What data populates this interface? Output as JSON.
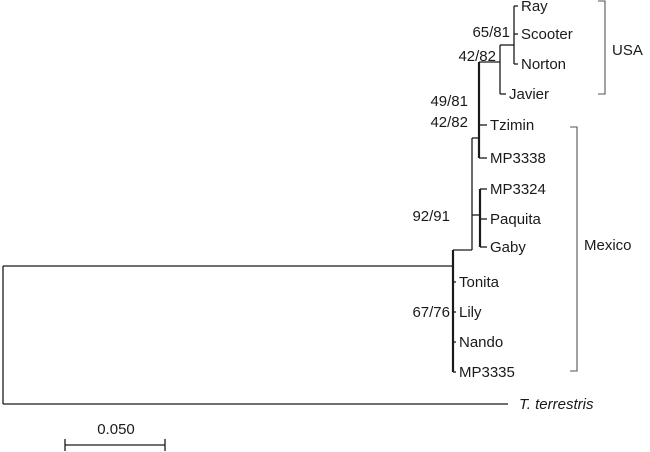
{
  "taxa": {
    "ray": "Ray",
    "scooter": "Scooter",
    "norton": "Norton",
    "javier": "Javier",
    "tzimin": "Tzimin",
    "mp3338": "MP3338",
    "mp3324": "MP3324",
    "paquita": "Paquita",
    "gaby": "Gaby",
    "tonita": "Tonita",
    "lily": "Lily",
    "nando": "Nando",
    "mp3335": "MP3335",
    "outgroup": "T. terrestris"
  },
  "support": {
    "ray_scooter_norton": "65/81",
    "usa_clade": "42/82",
    "node_49_81": "49/81",
    "node_42_82_lower": "42/82",
    "paquita_gaby": "92/91",
    "base": "67/76"
  },
  "groups": {
    "usa": "USA",
    "mexico": "Mexico"
  },
  "scale": {
    "label": "0.050"
  },
  "colors": {
    "line": "#1a1a1a",
    "bracket": "#555555"
  }
}
